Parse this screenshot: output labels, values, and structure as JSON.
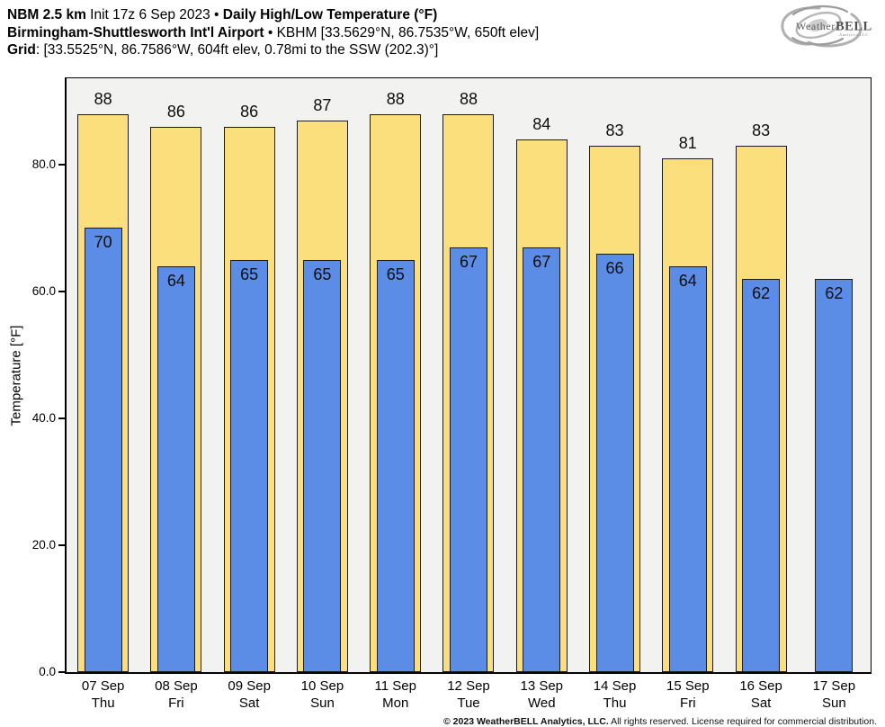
{
  "title": {
    "l1_bold1": "NBM 2.5 km",
    "l1_reg": " Init 17z 6 Sep 2023 • ",
    "l1_bold2": "Daily High/Low Temperature (°F)",
    "l2_bold": "Birmingham-Shuttlesworth Int'l Airport",
    "l2_reg": " • KBHM [33.5629°N, 86.7535°W, 650ft elev]",
    "l3_bold": "Grid",
    "l3_reg": ": [33.5525°N, 86.7586°W, 604ft elev, 0.78mi to the SSW (202.3)°]"
  },
  "logo": {
    "brand_weather": "Weather",
    "brand_bell": "BELL",
    "sub": "Analytics LLC"
  },
  "chart_data": {
    "type": "bar",
    "title": "Daily High/Low Temperature (°F)",
    "ylabel": "Temperature [°F]",
    "ylim": [
      0,
      93.6
    ],
    "grid": false,
    "legend": "none",
    "yticks": [
      {
        "v": 0,
        "label": "0.0"
      },
      {
        "v": 20,
        "label": "20.0"
      },
      {
        "v": 40,
        "label": "40.0"
      },
      {
        "v": 60,
        "label": "60.0"
      },
      {
        "v": 80,
        "label": "80.0"
      }
    ],
    "categories": [
      "07 Sep",
      "08 Sep",
      "09 Sep",
      "10 Sep",
      "11 Sep",
      "12 Sep",
      "13 Sep",
      "14 Sep",
      "15 Sep",
      "16 Sep",
      "17 Sep"
    ],
    "days": [
      {
        "date": "07 Sep",
        "dow": "Thu",
        "high": 88,
        "low": 70
      },
      {
        "date": "08 Sep",
        "dow": "Fri",
        "high": 86,
        "low": 64
      },
      {
        "date": "09 Sep",
        "dow": "Sat",
        "high": 86,
        "low": 65
      },
      {
        "date": "10 Sep",
        "dow": "Sun",
        "high": 87,
        "low": 65
      },
      {
        "date": "11 Sep",
        "dow": "Mon",
        "high": 88,
        "low": 65
      },
      {
        "date": "12 Sep",
        "dow": "Tue",
        "high": 88,
        "low": 67
      },
      {
        "date": "13 Sep",
        "dow": "Wed",
        "high": 84,
        "low": 67
      },
      {
        "date": "14 Sep",
        "dow": "Thu",
        "high": 83,
        "low": 66
      },
      {
        "date": "15 Sep",
        "dow": "Fri",
        "high": 81,
        "low": 64
      },
      {
        "date": "16 Sep",
        "dow": "Sat",
        "high": 83,
        "low": 62
      },
      {
        "date": "17 Sep",
        "dow": "Sun",
        "high": null,
        "low": 62
      }
    ],
    "series": [
      {
        "name": "High",
        "color": "#fbdf7c",
        "values": [
          88,
          86,
          86,
          87,
          88,
          88,
          84,
          83,
          81,
          83,
          null
        ]
      },
      {
        "name": "Low",
        "color": "#5c8de6",
        "values": [
          70,
          64,
          65,
          65,
          65,
          67,
          67,
          66,
          64,
          62,
          62
        ]
      }
    ]
  },
  "footer": {
    "bold": "© 2023 WeatherBELL Analytics, LLC.",
    "rest": " All rights reserved. License required for commercial distribution."
  },
  "colors": {
    "page_bg": "#ffffff",
    "plot_bg": "#f2f2f1",
    "high_bar": "#fbdf7c",
    "low_bar": "#5c8de6",
    "bar_border": "#1a1a1a"
  }
}
